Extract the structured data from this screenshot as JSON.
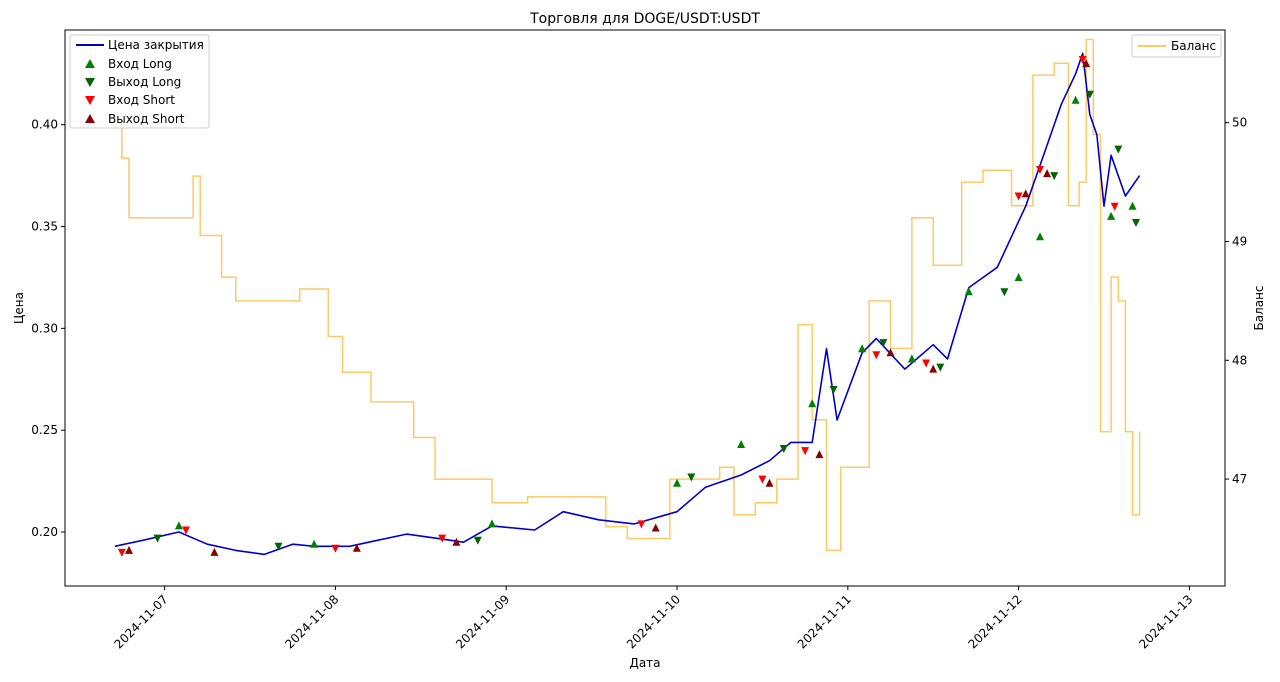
{
  "chart_data": {
    "type": "line",
    "title": "Торговля для DOGE/USDT:USDT",
    "xlabel": "Дата",
    "ylabel_left": "Цена",
    "ylabel_right": "Баланс",
    "x_ticks": [
      "2024-11-07",
      "2024-11-08",
      "2024-11-09",
      "2024-11-10",
      "2024-11-11",
      "2024-11-12",
      "2024-11-13"
    ],
    "x_range": [
      "2024-11-06T10:00",
      "2024-11-13T05:00"
    ],
    "y_left_ticks": [
      0.2,
      0.25,
      0.3,
      0.35,
      0.4
    ],
    "y_left_tick_labels": [
      "0.20",
      "0.25",
      "0.30",
      "0.35",
      "0.40"
    ],
    "y_left_range": [
      0.1735,
      0.4465
    ],
    "y_right_ticks": [
      47,
      48,
      49,
      50
    ],
    "y_right_tick_labels": [
      "47",
      "48",
      "49",
      "50"
    ],
    "y_right_range": [
      46.1,
      50.78
    ],
    "legend_left_position": "upper-left",
    "legend_right_position": "upper-right",
    "colors": {
      "price": "#0000cc",
      "balance": "#ffa500",
      "long_entry": "#008000",
      "long_exit": "#006400",
      "short_entry": "#ff0000",
      "short_exit": "#8b0000"
    },
    "series": [
      {
        "name": "Цена закрытия",
        "axis": "left",
        "x": [
          "2024-11-06T17:00",
          "2024-11-06T21:00",
          "2024-11-07T02:00",
          "2024-11-07T06:00",
          "2024-11-07T10:00",
          "2024-11-07T14:00",
          "2024-11-07T18:00",
          "2024-11-07T21:00",
          "2024-11-08T02:00",
          "2024-11-08T06:00",
          "2024-11-08T10:00",
          "2024-11-08T14:00",
          "2024-11-08T18:00",
          "2024-11-08T22:00",
          "2024-11-09T04:00",
          "2024-11-09T08:00",
          "2024-11-09T13:00",
          "2024-11-09T18:00",
          "2024-11-10T00:00",
          "2024-11-10T04:00",
          "2024-11-10T09:00",
          "2024-11-10T13:00",
          "2024-11-10T16:00",
          "2024-11-10T19:00",
          "2024-11-10T21:00",
          "2024-11-10T22:30",
          "2024-11-11T02:00",
          "2024-11-11T04:00",
          "2024-11-11T08:00",
          "2024-11-11T12:00",
          "2024-11-11T14:00",
          "2024-11-11T17:00",
          "2024-11-11T19:00",
          "2024-11-11T21:00",
          "2024-11-11T23:00",
          "2024-11-12T01:00",
          "2024-11-12T04:00",
          "2024-11-12T06:00",
          "2024-11-12T08:00",
          "2024-11-12T09:00",
          "2024-11-12T10:00",
          "2024-11-12T11:00",
          "2024-11-12T12:00",
          "2024-11-12T13:00",
          "2024-11-12T15:00",
          "2024-11-12T17:00"
        ],
        "values": [
          0.193,
          0.196,
          0.2,
          0.194,
          0.191,
          0.189,
          0.194,
          0.193,
          0.193,
          0.196,
          0.199,
          0.197,
          0.195,
          0.203,
          0.201,
          0.21,
          0.206,
          0.204,
          0.21,
          0.222,
          0.228,
          0.235,
          0.244,
          0.244,
          0.29,
          0.255,
          0.288,
          0.295,
          0.28,
          0.292,
          0.285,
          0.32,
          0.325,
          0.33,
          0.345,
          0.36,
          0.39,
          0.41,
          0.425,
          0.435,
          0.405,
          0.395,
          0.36,
          0.385,
          0.365,
          0.375
        ]
      },
      {
        "name": "Баланс",
        "axis": "right",
        "x": [
          "2024-11-06T17:00",
          "2024-11-06T18:00",
          "2024-11-06T19:00",
          "2024-11-07T03:00",
          "2024-11-07T04:00",
          "2024-11-07T05:00",
          "2024-11-07T08:00",
          "2024-11-07T10:00",
          "2024-11-07T19:00",
          "2024-11-07T21:00",
          "2024-11-07T23:00",
          "2024-11-08T01:00",
          "2024-11-08T05:00",
          "2024-11-08T11:00",
          "2024-11-08T14:00",
          "2024-11-08T22:00",
          "2024-11-09T03:00",
          "2024-11-09T14:00",
          "2024-11-09T17:00",
          "2024-11-09T23:00",
          "2024-11-10T06:00",
          "2024-11-10T08:00",
          "2024-11-10T11:00",
          "2024-11-10T14:00",
          "2024-11-10T17:00",
          "2024-11-10T19:00",
          "2024-11-10T21:00",
          "2024-11-10T23:00",
          "2024-11-11T03:00",
          "2024-11-11T06:00",
          "2024-11-11T09:00",
          "2024-11-11T12:00",
          "2024-11-11T16:00",
          "2024-11-11T19:00",
          "2024-11-11T23:00",
          "2024-11-12T02:00",
          "2024-11-12T05:00",
          "2024-11-12T07:00",
          "2024-11-12T08:30",
          "2024-11-12T09:30",
          "2024-11-12T10:30",
          "2024-11-12T11:30",
          "2024-11-12T13:00",
          "2024-11-12T14:00",
          "2024-11-12T15:00",
          "2024-11-12T16:00",
          "2024-11-12T17:00"
        ],
        "values": [
          50.0,
          49.7,
          49.2,
          49.2,
          49.55,
          49.05,
          48.7,
          48.5,
          48.6,
          48.6,
          48.2,
          47.9,
          47.65,
          47.35,
          47.0,
          46.8,
          46.85,
          46.6,
          46.5,
          47.0,
          47.1,
          46.7,
          46.8,
          47.0,
          48.3,
          47.5,
          46.4,
          47.1,
          48.5,
          48.1,
          49.2,
          48.8,
          49.5,
          49.6,
          49.3,
          50.4,
          50.5,
          49.3,
          49.5,
          50.7,
          49.9,
          47.4,
          48.7,
          48.5,
          47.4,
          46.7,
          47.4
        ]
      }
    ],
    "markers": [
      {
        "name": "Вход Long",
        "symbol": "triangle-up",
        "x": [
          "2024-11-07T02:00",
          "2024-11-07T21:00",
          "2024-11-08T22:00",
          "2024-11-10T00:00",
          "2024-11-10T09:00",
          "2024-11-10T19:00",
          "2024-11-11T02:00",
          "2024-11-11T09:00",
          "2024-11-11T17:00",
          "2024-11-12T00:00",
          "2024-11-12T03:00",
          "2024-11-12T08:00",
          "2024-11-12T13:00",
          "2024-11-12T16:00"
        ],
        "values": [
          0.203,
          0.194,
          0.204,
          0.224,
          0.243,
          0.263,
          0.29,
          0.285,
          0.318,
          0.325,
          0.345,
          0.412,
          0.355,
          0.36
        ]
      },
      {
        "name": "Выход Long",
        "symbol": "triangle-down",
        "x": [
          "2024-11-06T23:00",
          "2024-11-07T16:00",
          "2024-11-08T20:00",
          "2024-11-10T02:00",
          "2024-11-10T15:00",
          "2024-11-10T22:00",
          "2024-11-11T05:00",
          "2024-11-11T13:00",
          "2024-11-11T22:00",
          "2024-11-12T05:00",
          "2024-11-12T10:00",
          "2024-11-12T14:00",
          "2024-11-12T16:30"
        ],
        "values": [
          0.197,
          0.193,
          0.196,
          0.227,
          0.241,
          0.27,
          0.293,
          0.281,
          0.318,
          0.375,
          0.415,
          0.388,
          0.352
        ]
      },
      {
        "name": "Вход Short",
        "symbol": "triangle-down",
        "x": [
          "2024-11-06T18:00",
          "2024-11-07T03:00",
          "2024-11-08T00:00",
          "2024-11-08T15:00",
          "2024-11-09T19:00",
          "2024-11-10T12:00",
          "2024-11-10T18:00",
          "2024-11-11T04:00",
          "2024-11-11T11:00",
          "2024-11-12T00:00",
          "2024-11-12T03:00",
          "2024-11-12T09:00",
          "2024-11-12T13:30"
        ],
        "values": [
          0.19,
          0.201,
          0.192,
          0.197,
          0.204,
          0.226,
          0.24,
          0.287,
          0.283,
          0.365,
          0.378,
          0.432,
          0.36
        ]
      },
      {
        "name": "Выход Short",
        "symbol": "triangle-up",
        "x": [
          "2024-11-06T19:00",
          "2024-11-07T07:00",
          "2024-11-08T03:00",
          "2024-11-08T17:00",
          "2024-11-09T21:00",
          "2024-11-10T13:00",
          "2024-11-10T20:00",
          "2024-11-11T06:00",
          "2024-11-11T12:00",
          "2024-11-12T01:00",
          "2024-11-12T04:00",
          "2024-11-12T09:30"
        ],
        "values": [
          0.191,
          0.19,
          0.192,
          0.195,
          0.202,
          0.224,
          0.238,
          0.288,
          0.28,
          0.366,
          0.376,
          0.43
        ]
      }
    ]
  }
}
